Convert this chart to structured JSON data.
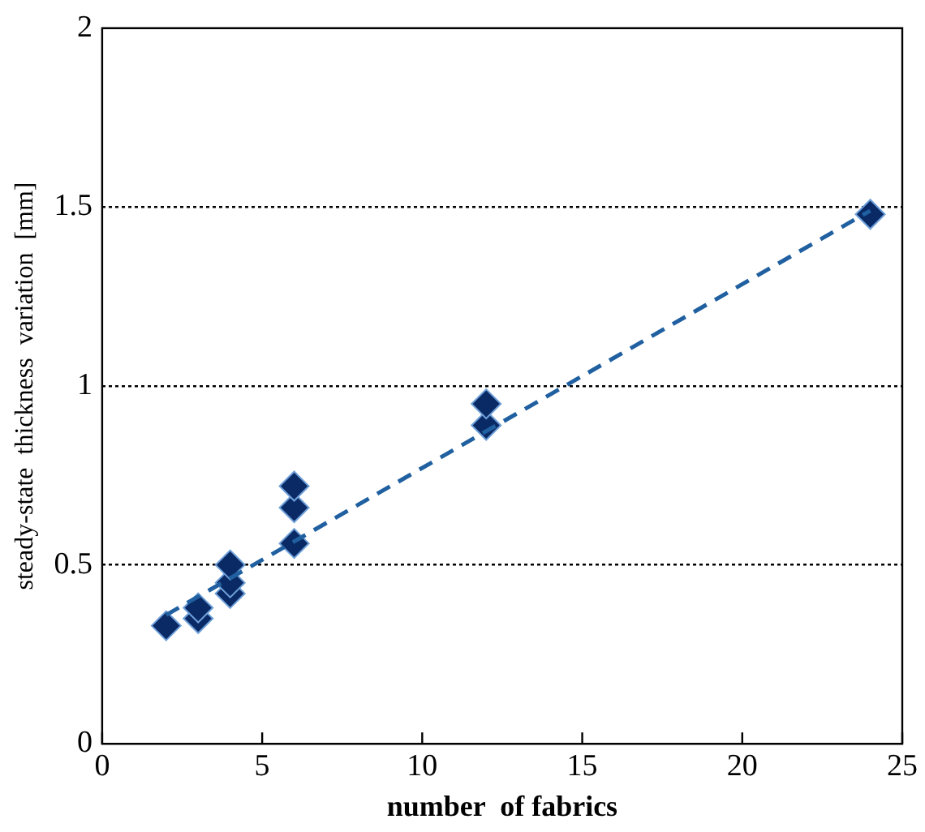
{
  "chart_data": {
    "type": "scatter",
    "xlabel": "number  of fabrics",
    "ylabel": "steady-state  thickness  variation  [mm]",
    "xlim": [
      0,
      25
    ],
    "xticks": [
      0,
      5,
      10,
      15,
      20,
      25
    ],
    "ylim": [
      0,
      2
    ],
    "yticks": [
      0,
      0.5,
      1,
      1.5,
      2
    ],
    "grid": "y",
    "legend": false,
    "marker": "diamond",
    "series": [
      {
        "color": "#0a2a66",
        "x": [
          2,
          3,
          3,
          4,
          4,
          4,
          6,
          6,
          6,
          12,
          12,
          24
        ],
        "values": [
          0.33,
          0.35,
          0.38,
          0.42,
          0.45,
          0.5,
          0.56,
          0.66,
          0.72,
          0.89,
          0.95,
          1.48
        ]
      },
      {
        "type": "line",
        "color": "#2060a0",
        "line_style": "dashed",
        "marker": "none",
        "x": [
          2,
          24
        ],
        "values": [
          0.36,
          1.49
        ]
      }
    ]
  }
}
